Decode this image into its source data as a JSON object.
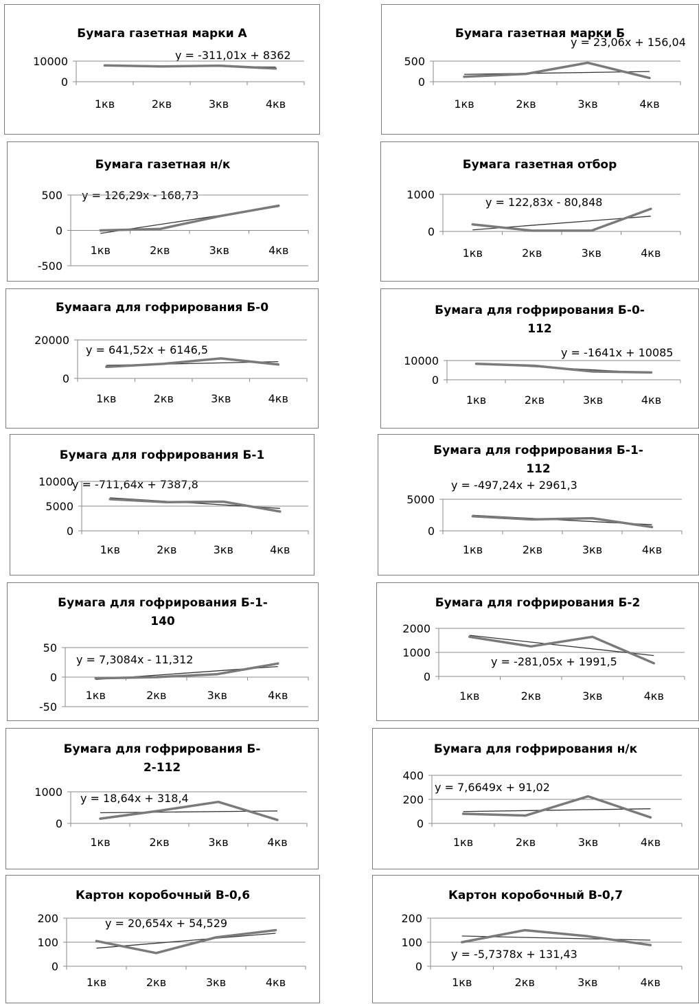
{
  "series_color": "#7a7a7a",
  "trend_color": "#333333",
  "chart_data": [
    {
      "type": "line",
      "title": "Бумага газетная марки  А",
      "categories": [
        "1кв",
        "2кв",
        "3кв",
        "4кв"
      ],
      "series": [
        {
          "values": [
            7900,
            7400,
            7800,
            6400
          ]
        }
      ],
      "trendline_label": "y = -311,01x + 8362",
      "trend": {
        "slope": -311.01,
        "intercept": 8362
      },
      "yticks": [
        "10000",
        "0"
      ],
      "ylim": [
        0,
        10000
      ],
      "ytick_values": [
        10000,
        0
      ]
    },
    {
      "type": "line",
      "title": "Бумага газетная марки  Б",
      "categories": [
        "1кв",
        "2кв",
        "3кв",
        "4кв"
      ],
      "series": [
        {
          "values": [
            120,
            190,
            460,
            90
          ]
        }
      ],
      "trendline_label": "y = 23,06x + 156,04",
      "trend": {
        "slope": 23.06,
        "intercept": 156.04
      },
      "yticks": [
        "500",
        "0"
      ],
      "ylim": [
        0,
        500
      ],
      "ytick_values": [
        500,
        0
      ]
    },
    {
      "type": "line",
      "title": "Бумага газетная н/к",
      "categories": [
        "1кв",
        "2кв",
        "3кв",
        "4кв"
      ],
      "series": [
        {
          "values": [
            0,
            20,
            200,
            350
          ]
        }
      ],
      "trendline_label": "y = 126,29x - 168,73",
      "trend": {
        "slope": 126.29,
        "intercept": -168.73
      },
      "yticks": [
        "500",
        "0",
        "-500"
      ],
      "ylim": [
        -500,
        500
      ],
      "ytick_values": [
        500,
        0,
        -500
      ]
    },
    {
      "type": "line",
      "title": "Бумага газетная отбор",
      "categories": [
        "1кв",
        "2кв",
        "3кв",
        "4кв"
      ],
      "series": [
        {
          "values": [
            190,
            20,
            20,
            610
          ]
        }
      ],
      "trendline_label": "y = 122,83x - 80,848",
      "trend": {
        "slope": 122.83,
        "intercept": -80.848
      },
      "yticks": [
        "1000",
        "0"
      ],
      "ylim": [
        0,
        1000
      ],
      "ytick_values": [
        1000,
        0
      ]
    },
    {
      "type": "line",
      "title": "Бумаага для гофрирования Б-0",
      "categories": [
        "1кв",
        "2кв",
        "3кв",
        "4кв"
      ],
      "series": [
        {
          "values": [
            6000,
            7600,
            10400,
            7200
          ]
        }
      ],
      "trendline_label": "y = 641,52x + 6146,5",
      "trend": {
        "slope": 641.52,
        "intercept": 6146.5
      },
      "yticks": [
        "20000",
        "0"
      ],
      "ylim": [
        0,
        20000
      ],
      "ytick_values": [
        20000,
        0
      ]
    },
    {
      "type": "line",
      "title": "Бумага для гофрирования Б-0-\n112",
      "categories": [
        "1кв",
        "2кв",
        "3кв",
        "4кв"
      ],
      "series": [
        {
          "values": [
            8300,
            7300,
            4300,
            3800
          ]
        }
      ],
      "trendline_label": "y = -1641x + 10085",
      "trend": {
        "slope": -1641,
        "intercept": 10085
      },
      "yticks": [
        "10000",
        "0"
      ],
      "ylim": [
        0,
        10000
      ],
      "ytick_values": [
        10000,
        0
      ]
    },
    {
      "type": "line",
      "title": "Бумага для гофрирования Б-1",
      "categories": [
        "1кв",
        "2кв",
        "3кв",
        "4кв"
      ],
      "series": [
        {
          "values": [
            6400,
            5800,
            5900,
            3900
          ]
        }
      ],
      "trendline_label": "y = -711,64x + 7387,8",
      "trend": {
        "slope": -711.64,
        "intercept": 7387.8
      },
      "yticks": [
        "10000",
        "5000",
        "0"
      ],
      "ylim": [
        0,
        10000
      ],
      "ytick_values": [
        10000,
        5000,
        0
      ]
    },
    {
      "type": "line",
      "title": "Бумага для гофрирования Б-1-\n112",
      "categories": [
        "1кв",
        "2кв",
        "3кв",
        "4кв"
      ],
      "series": [
        {
          "values": [
            2300,
            1800,
            2000,
            600
          ]
        }
      ],
      "trendline_label": "y = -497,24x + 2961,3",
      "trend": {
        "slope": -497.24,
        "intercept": 2961.3
      },
      "yticks": [
        "5000",
        "0"
      ],
      "ylim": [
        0,
        5000
      ],
      "ytick_values": [
        5000,
        0
      ]
    },
    {
      "type": "line",
      "title": "Бумага для гофрирования Б-1-\n140",
      "categories": [
        "1кв",
        "2кв",
        "3кв",
        "4кв"
      ],
      "series": [
        {
          "values": [
            -2,
            0,
            5,
            23
          ]
        }
      ],
      "trendline_label": "y = 7,3084x - 11,312",
      "trend": {
        "slope": 7.3084,
        "intercept": -11.312
      },
      "yticks": [
        "50",
        "0",
        "-50"
      ],
      "ylim": [
        -50,
        50
      ],
      "ytick_values": [
        50,
        0,
        -50
      ]
    },
    {
      "type": "line",
      "title": "Бумага для гофрирования Б-2",
      "categories": [
        "1кв",
        "2кв",
        "3кв",
        "4кв"
      ],
      "series": [
        {
          "values": [
            1650,
            1250,
            1650,
            550
          ]
        }
      ],
      "trendline_label": "y = -281,05x + 1991,5",
      "trend": {
        "slope": -281.05,
        "intercept": 1991.5
      },
      "yticks": [
        "2000",
        "1000",
        "0"
      ],
      "ylim": [
        0,
        2000
      ],
      "ytick_values": [
        2000,
        1000,
        0
      ]
    },
    {
      "type": "line",
      "title": "Бумага для гофрирования Б-\n2-112",
      "categories": [
        "1кв",
        "2кв",
        "3кв",
        "4кв"
      ],
      "series": [
        {
          "values": [
            150,
            400,
            680,
            110
          ]
        }
      ],
      "trendline_label": "y = 18,64x + 318,4",
      "trend": {
        "slope": 18.64,
        "intercept": 318.4
      },
      "yticks": [
        "1000",
        "0"
      ],
      "ylim": [
        0,
        1000
      ],
      "ytick_values": [
        1000,
        0
      ]
    },
    {
      "type": "line",
      "title": "Бумага для гофрирования н/к",
      "categories": [
        "1кв",
        "2кв",
        "3кв",
        "4кв"
      ],
      "series": [
        {
          "values": [
            80,
            65,
            225,
            50
          ]
        }
      ],
      "trendline_label": "y = 7,6649x + 91,02",
      "trend": {
        "slope": 7.6649,
        "intercept": 91.02
      },
      "yticks": [
        "400",
        "200",
        "0"
      ],
      "ylim": [
        0,
        400
      ],
      "ytick_values": [
        400,
        200,
        0
      ]
    },
    {
      "type": "line",
      "title": "Картон коробочный  В-0,6",
      "categories": [
        "1кв",
        "2кв",
        "3кв",
        "4кв"
      ],
      "series": [
        {
          "values": [
            105,
            55,
            120,
            150
          ]
        }
      ],
      "trendline_label": "y = 20,654x + 54,529",
      "trend": {
        "slope": 20.654,
        "intercept": 54.529
      },
      "yticks": [
        "200",
        "100",
        "0"
      ],
      "ylim": [
        0,
        200
      ],
      "ytick_values": [
        200,
        100,
        0
      ]
    },
    {
      "type": "line",
      "title": "Картон коробочный  В-0,7",
      "categories": [
        "1кв",
        "2кв",
        "3кв",
        "4кв"
      ],
      "series": [
        {
          "values": [
            100,
            150,
            125,
            88
          ]
        }
      ],
      "trendline_label": "y = -5,7378x + 131,43",
      "trend": {
        "slope": -5.7378,
        "intercept": 131.43
      },
      "yticks": [
        "200",
        "100",
        "0"
      ],
      "ylim": [
        0,
        200
      ],
      "ytick_values": [
        200,
        100,
        0
      ]
    }
  ]
}
